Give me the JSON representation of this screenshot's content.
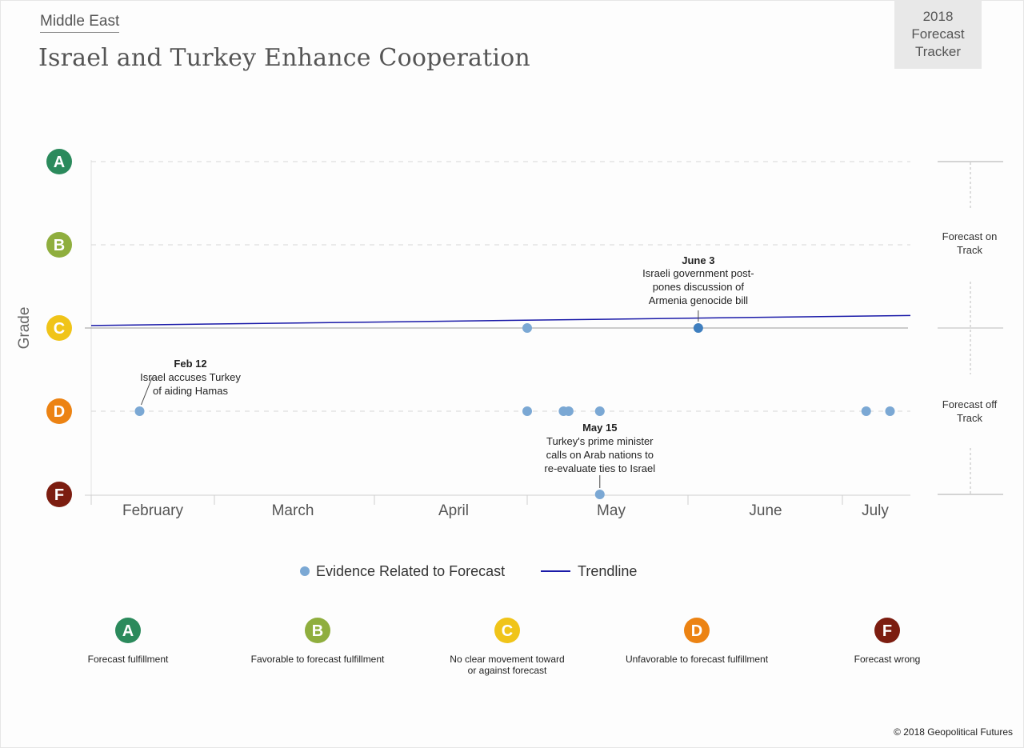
{
  "header": {
    "region": "Middle East",
    "title": "Israel and Turkey Enhance Cooperation",
    "tracker_label": [
      "2018",
      "Forecast",
      "Tracker"
    ]
  },
  "colors": {
    "A": "#2b8a5c",
    "B": "#8fae3e",
    "C": "#f0c419",
    "D": "#ec8313",
    "F": "#7c1d10",
    "evidence": "#7ba8d4",
    "evidence_highlight": "#3f7fbf",
    "trendline": "#1a1aa8"
  },
  "chart_data": {
    "type": "scatter",
    "ylabel": "Grade",
    "grades": [
      "A",
      "B",
      "C",
      "D",
      "F"
    ],
    "months": [
      "February",
      "March",
      "April",
      "May",
      "June",
      "July"
    ],
    "series": [
      {
        "name": "Evidence Related to Forecast",
        "points": [
          {
            "date": "2018-02-12",
            "grade": "D"
          },
          {
            "date": "2018-05-01",
            "grade": "C"
          },
          {
            "date": "2018-05-01",
            "grade": "D"
          },
          {
            "date": "2018-05-08",
            "grade": "D"
          },
          {
            "date": "2018-05-09",
            "grade": "D"
          },
          {
            "date": "2018-05-15",
            "grade": "F"
          },
          {
            "date": "2018-05-15",
            "grade": "D"
          },
          {
            "date": "2018-06-03",
            "grade": "C"
          },
          {
            "date": "2018-07-08",
            "grade": "D"
          },
          {
            "date": "2018-07-15",
            "grade": "D"
          }
        ]
      },
      {
        "name": "Trendline",
        "type": "line",
        "start": {
          "date": "2018-02-01",
          "grade_value": 2.03
        },
        "end": {
          "date": "2018-07-21",
          "grade_value": 2.15
        }
      }
    ],
    "annotations": [
      {
        "date": "2018-02-12",
        "grade": "D",
        "title": "Feb 12",
        "lines": [
          "Israel accuses Turkey",
          "of aiding Hamas"
        ]
      },
      {
        "date": "2018-06-03",
        "grade": "C",
        "title": "June 3",
        "lines": [
          "Israeli government post-",
          "pones discussion of",
          "Armenia genocide bill"
        ]
      },
      {
        "date": "2018-05-15",
        "grade": "F",
        "title": "May 15",
        "lines": [
          "Turkey's prime minister",
          "calls on Arab nations to",
          "re-evaluate ties to Israel"
        ]
      }
    ],
    "legend": [
      "Evidence Related to Forecast",
      "Trendline"
    ],
    "side_labels": {
      "on_track": [
        "Forecast on",
        "Track"
      ],
      "off_track": [
        "Forecast off",
        "Track"
      ]
    }
  },
  "grade_key": [
    {
      "grade": "A",
      "label": [
        "Forecast fulfillment"
      ]
    },
    {
      "grade": "B",
      "label": [
        "Favorable to forecast fulfillment"
      ]
    },
    {
      "grade": "C",
      "label": [
        "No clear movement toward",
        "or against forecast"
      ]
    },
    {
      "grade": "D",
      "label": [
        "Unfavorable to forecast fulfillment"
      ]
    },
    {
      "grade": "F",
      "label": [
        "Forecast wrong"
      ]
    }
  ],
  "footer": {
    "copyright": "© 2018 Geopolitical Futures"
  }
}
